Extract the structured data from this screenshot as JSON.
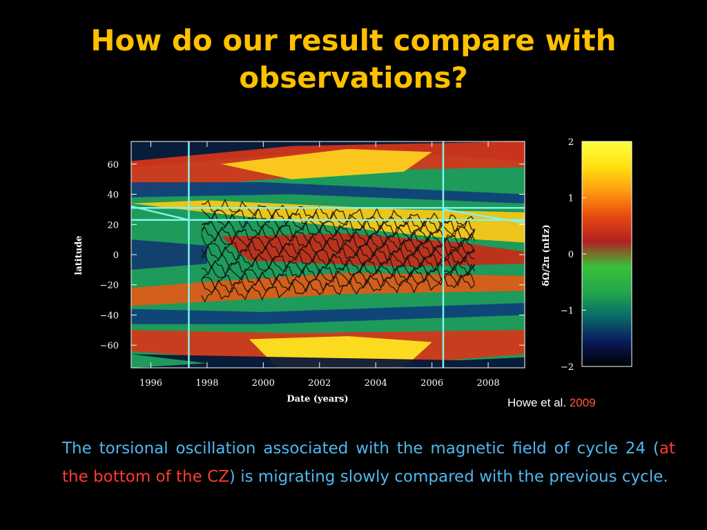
{
  "slide": {
    "title_line1": "How do our result compare with",
    "title_line2": "observations?"
  },
  "citation": {
    "author": "Howe et al.",
    "year": "2009"
  },
  "body": {
    "part1": "The torsional oscillation associated with the magnetic field of cycle 24 (",
    "highlight": "at the bottom of the CZ",
    "part2": ") is migrating slowly compared with the previous cycle."
  },
  "colors": {
    "title": "#ffc000",
    "body": "#4fb8ef",
    "highlight": "#ff3b2f",
    "citation_year": "#ff5a3c",
    "guide_lines": "#7ff5ee",
    "colorbar": [
      "#000000",
      "#0a1a5a",
      "#0a6a6a",
      "#22a84a",
      "#3ac03a",
      "#b32020",
      "#e84a10",
      "#ff9a10",
      "#ffe010",
      "#ffff40"
    ]
  },
  "chart_data": {
    "type": "heatmap",
    "xlabel": "Date (years)",
    "ylabel": "latitude",
    "xlim": [
      1995.3,
      2009.3
    ],
    "ylim": [
      -75,
      75
    ],
    "xticks": [
      1996,
      1998,
      2000,
      2002,
      2004,
      2006,
      2008
    ],
    "xtick_labels": [
      "1996",
      "1998",
      "2000",
      "2002",
      "2004",
      "2006",
      "2008"
    ],
    "yticks": [
      60,
      40,
      20,
      0,
      -20,
      -40,
      -60
    ],
    "ytick_labels": [
      "60",
      "40",
      "20",
      "0",
      "−20",
      "−40",
      "−60"
    ],
    "colorbar": {
      "label": "δΩ/2π  (nHz)",
      "range": [
        -2,
        2
      ],
      "ticks": [
        "2",
        "1",
        "0",
        "−1",
        "−2"
      ]
    },
    "guides": {
      "vertical_lines_x": [
        1997.35,
        2006.4
      ],
      "horizontal_lines_latitude": [
        31,
        23
      ],
      "slanted_segments": [
        {
          "x": [
            1995.3,
            1997.35
          ],
          "latitude": [
            32,
            23
          ]
        },
        {
          "x": [
            2006.4,
            2009.3
          ],
          "latitude": [
            30,
            21
          ]
        }
      ]
    }
  }
}
